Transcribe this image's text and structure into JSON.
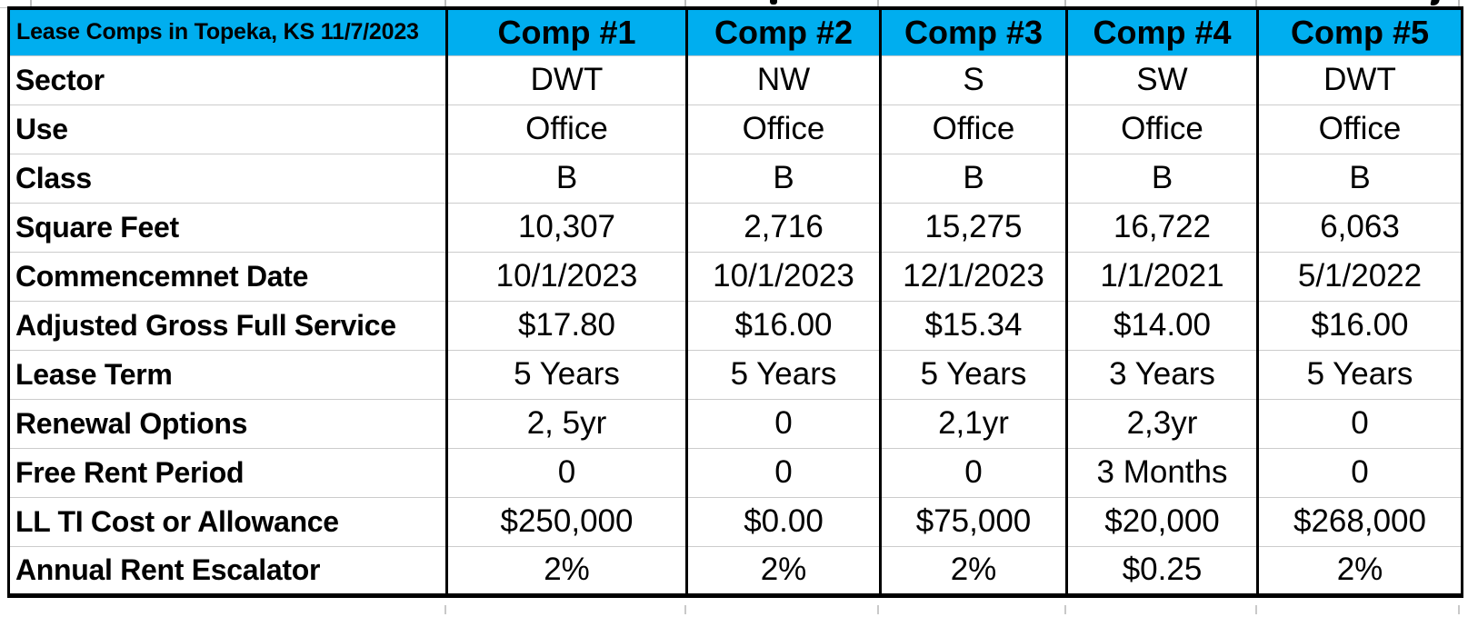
{
  "colors": {
    "header_bg": "#00AEEF",
    "header_text": "#000000",
    "cell_text": "#000000",
    "heavy_grid": "#000000",
    "light_grid": "#CCCCCC"
  },
  "table": {
    "title": "Lease Comps in Topeka, KS 11/7/2023",
    "comp_headers": [
      "Comp #1",
      "Comp #2",
      "Comp #3",
      "Comp #4",
      "Comp #5"
    ],
    "rows": [
      {
        "label": "Sector",
        "values": [
          "DWT",
          "NW",
          "S",
          "SW",
          "DWT"
        ]
      },
      {
        "label": "Use",
        "values": [
          "Office",
          "Office",
          "Office",
          "Office",
          "Office"
        ]
      },
      {
        "label": "Class",
        "values": [
          "B",
          "B",
          "B",
          "B",
          "B"
        ]
      },
      {
        "label": "Square Feet",
        "values": [
          "10,307",
          "2,716",
          "15,275",
          "16,722",
          "6,063"
        ]
      },
      {
        "label": "Commencemnet Date",
        "values": [
          "10/1/2023",
          "10/1/2023",
          "12/1/2023",
          "1/1/2021",
          "5/1/2022"
        ]
      },
      {
        "label": "Adjusted Gross Full Service",
        "values": [
          "$17.80",
          "$16.00",
          "$15.34",
          "$14.00",
          "$16.00"
        ]
      },
      {
        "label": "Lease Term",
        "values": [
          "5 Years",
          "5 Years",
          "5 Years",
          "3 Years",
          "5 Years"
        ]
      },
      {
        "label": "Renewal Options",
        "values": [
          "2, 5yr",
          "0",
          "2,1yr",
          "2,3yr",
          "0"
        ]
      },
      {
        "label": "Free Rent Period",
        "values": [
          "0",
          "0",
          "0",
          "3 Months",
          "0"
        ]
      },
      {
        "label": "LL TI Cost or Allowance",
        "values": [
          "$250,000",
          "$0.00",
          "$75,000",
          "$20,000",
          "$268,000"
        ]
      },
      {
        "label": "Annual Rent Escalator",
        "values": [
          "2%",
          "2%",
          "2%",
          "$0.25",
          "2%"
        ]
      }
    ]
  }
}
